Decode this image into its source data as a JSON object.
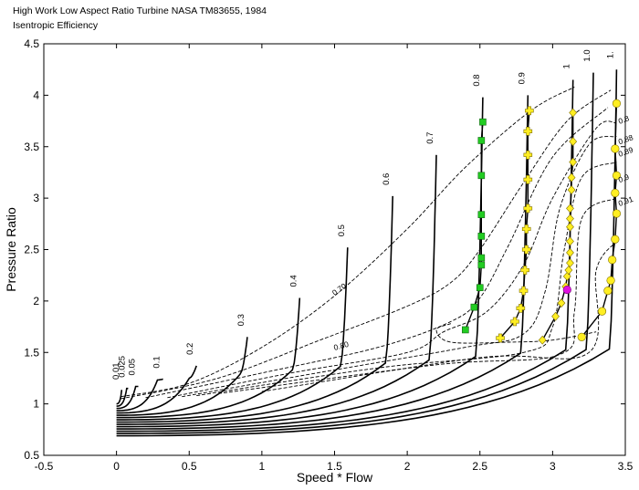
{
  "header": {
    "title": "High Work Low Aspect Ratio Turbine NASA TM83655, 1984",
    "subtitle": "Isentropic Efficiency"
  },
  "chart_data": {
    "type": "line",
    "xlabel": "Speed * Flow",
    "ylabel": "Pressure Ratio",
    "xlim": [
      -0.5,
      3.5
    ],
    "ylim": [
      0.5,
      4.5
    ],
    "xticks": [
      "-0.5",
      "0",
      "0.5",
      "1",
      "1.5",
      "2",
      "2.5",
      "3",
      "3.5"
    ],
    "yticks": [
      "0.5",
      "1",
      "1.5",
      "2",
      "2.5",
      "3",
      "3.5",
      "4",
      "4.5"
    ],
    "grid": false,
    "speed_lines": [
      {
        "label": "0.01",
        "x0": 0.0,
        "top": [
          0.04,
          1.13
        ]
      },
      {
        "label": "0.025",
        "x0": 0.0,
        "top": [
          0.08,
          1.15
        ]
      },
      {
        "label": "0.05",
        "x0": 0.0,
        "top": [
          0.15,
          1.17
        ]
      },
      {
        "label": "0.1",
        "x0": 0.0,
        "top": [
          0.32,
          1.24
        ]
      },
      {
        "label": "0.2",
        "x0": 0.0,
        "top": [
          0.55,
          1.37
        ]
      },
      {
        "label": "0.3",
        "x0": 0.0,
        "top": [
          0.9,
          1.65
        ]
      },
      {
        "label": "0.4",
        "x0": 0.0,
        "top": [
          1.26,
          2.03
        ]
      },
      {
        "label": "0.5",
        "x0": 0.0,
        "top": [
          1.59,
          2.52
        ]
      },
      {
        "label": "0.6",
        "x0": 0.0,
        "top": [
          1.9,
          3.02
        ]
      },
      {
        "label": "0.7",
        "x0": 0.0,
        "top": [
          2.2,
          3.42
        ]
      },
      {
        "label": "0.8",
        "x0": 0.0,
        "top": [
          2.52,
          3.98
        ]
      },
      {
        "label": "0.9",
        "x0": 0.0,
        "top": [
          2.83,
          4.0
        ]
      },
      {
        "label": "1",
        "x0": 0.0,
        "top": [
          3.14,
          4.15
        ]
      },
      {
        "label": "1.0",
        "x0": 0.0,
        "top": [
          3.28,
          4.22
        ]
      },
      {
        "label": "1.",
        "x0": 0.0,
        "top": [
          3.44,
          4.25
        ]
      }
    ],
    "efficiency_labels": [
      "0.70",
      "0.80",
      "0.8",
      "0.88",
      "0.89",
      "0.9",
      "0.91"
    ],
    "series": [
      {
        "marker": "square",
        "color": "#22cc22",
        "points": [
          [
            2.4,
            1.72
          ],
          [
            2.46,
            1.94
          ],
          [
            2.5,
            2.13
          ],
          [
            2.51,
            2.35
          ],
          [
            2.51,
            2.42
          ],
          [
            2.51,
            2.63
          ],
          [
            2.51,
            2.84
          ],
          [
            2.51,
            3.22
          ],
          [
            2.51,
            3.56
          ],
          [
            2.52,
            3.74
          ]
        ]
      },
      {
        "marker": "cross",
        "color": "#ffee22",
        "points": [
          [
            2.64,
            1.64
          ],
          [
            2.74,
            1.8
          ],
          [
            2.78,
            1.93
          ],
          [
            2.8,
            2.1
          ],
          [
            2.81,
            2.3
          ],
          [
            2.82,
            2.5
          ],
          [
            2.82,
            2.7
          ],
          [
            2.83,
            2.9
          ],
          [
            2.83,
            3.18
          ],
          [
            2.83,
            3.42
          ],
          [
            2.83,
            3.65
          ],
          [
            2.84,
            3.85
          ]
        ]
      },
      {
        "marker": "diamond",
        "color": "#ffee22",
        "points": [
          [
            2.93,
            1.62
          ],
          [
            3.02,
            1.85
          ],
          [
            3.06,
            1.98
          ],
          [
            3.09,
            2.14
          ],
          [
            3.1,
            2.24
          ],
          [
            3.11,
            2.3
          ],
          [
            3.12,
            2.37
          ],
          [
            3.12,
            2.47
          ],
          [
            3.12,
            2.58
          ],
          [
            3.12,
            2.72
          ],
          [
            3.12,
            2.8
          ],
          [
            3.12,
            2.9
          ],
          [
            3.13,
            3.08
          ],
          [
            3.13,
            3.2
          ],
          [
            3.14,
            3.35
          ],
          [
            3.14,
            3.55
          ],
          [
            3.14,
            3.83
          ]
        ]
      },
      {
        "marker": "circle",
        "color": "#ffee22",
        "points": [
          [
            3.2,
            1.65
          ],
          [
            3.34,
            1.9
          ],
          [
            3.38,
            2.1
          ],
          [
            3.4,
            2.2
          ],
          [
            3.41,
            2.4
          ],
          [
            3.43,
            2.6
          ],
          [
            3.44,
            2.85
          ],
          [
            3.43,
            3.05
          ],
          [
            3.44,
            3.22
          ],
          [
            3.43,
            3.48
          ],
          [
            3.44,
            3.92
          ]
        ]
      },
      {
        "marker": "circle",
        "color": "#e010e0",
        "points": [
          [
            3.1,
            2.11
          ]
        ]
      }
    ]
  }
}
